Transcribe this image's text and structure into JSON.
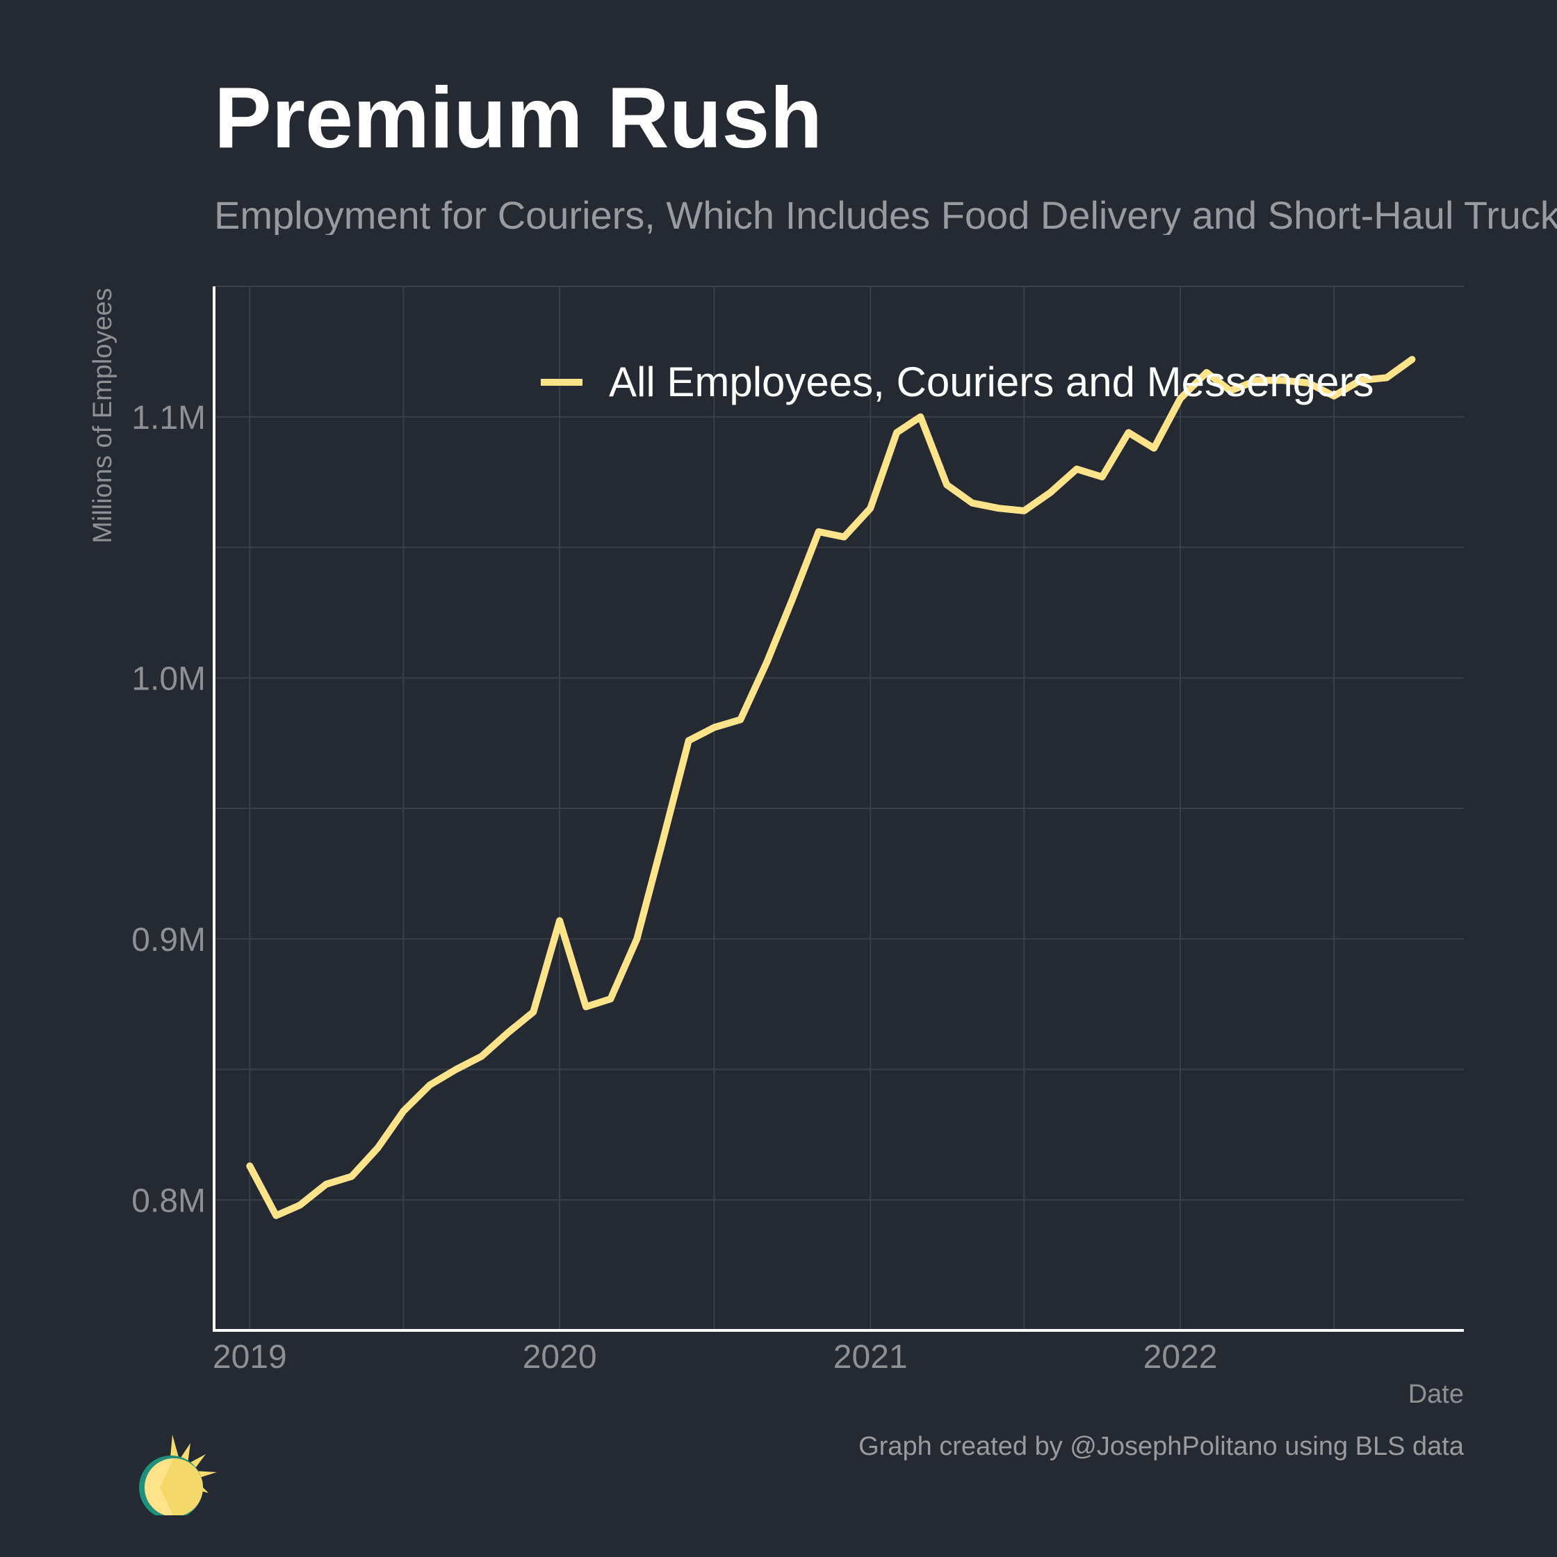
{
  "chart_data": {
    "type": "line",
    "title": "Premium Rush",
    "subtitle": "Employment for Couriers, Which Includes Food Delivery and Short-Haul Trucking",
    "xlabel": "Date",
    "ylabel": "Millions of Employees",
    "x_ticks": [
      "2019",
      "2020",
      "2021",
      "2022"
    ],
    "y_ticks": [
      {
        "value": 0.8,
        "label": "0.8M"
      },
      {
        "value": 0.9,
        "label": "0.9M"
      },
      {
        "value": 1.0,
        "label": "1.0M"
      },
      {
        "value": 1.1,
        "label": "1.1M"
      }
    ],
    "xlim": [
      "2018-11-20",
      "2022-12-01"
    ],
    "ylim": [
      0.75,
      1.15
    ],
    "grid": true,
    "legend": "top-right, inside plot",
    "series": [
      {
        "name": "All Employees, Couriers and Messengers",
        "color": "#fde38a",
        "x": [
          "2019-01",
          "2019-02",
          "2019-03",
          "2019-04",
          "2019-05",
          "2019-06",
          "2019-07",
          "2019-08",
          "2019-09",
          "2019-10",
          "2019-11",
          "2019-12",
          "2020-01",
          "2020-02",
          "2020-03",
          "2020-04",
          "2020-05",
          "2020-06",
          "2020-07",
          "2020-08",
          "2020-09",
          "2020-10",
          "2020-11",
          "2020-12",
          "2021-01",
          "2021-02",
          "2021-03",
          "2021-04",
          "2021-05",
          "2021-06",
          "2021-07",
          "2021-08",
          "2021-09",
          "2021-10",
          "2021-11",
          "2021-12",
          "2022-01",
          "2022-02",
          "2022-03",
          "2022-04",
          "2022-05",
          "2022-06",
          "2022-07",
          "2022-08",
          "2022-09",
          "2022-10"
        ],
        "values": [
          0.813,
          0.794,
          0.798,
          0.806,
          0.809,
          0.82,
          0.834,
          0.844,
          0.85,
          0.855,
          0.864,
          0.872,
          0.907,
          0.874,
          0.877,
          0.9,
          0.937,
          0.976,
          0.981,
          0.984,
          1.006,
          1.03,
          1.056,
          1.054,
          1.065,
          1.094,
          1.1,
          1.074,
          1.067,
          1.065,
          1.064,
          1.071,
          1.08,
          1.077,
          1.094,
          1.088,
          1.107,
          1.117,
          1.11,
          1.114,
          1.114,
          1.113,
          1.108,
          1.114,
          1.115,
          1.122
        ]
      }
    ]
  },
  "caption": "Graph created by @JosephPolitano using BLS data",
  "logo": "sun-logo-icon",
  "colors": {
    "background": "#252932",
    "line": "#fde38a",
    "grid": "#3b3f48",
    "axis": "#ffffff",
    "tick_text": "#8e9096"
  }
}
